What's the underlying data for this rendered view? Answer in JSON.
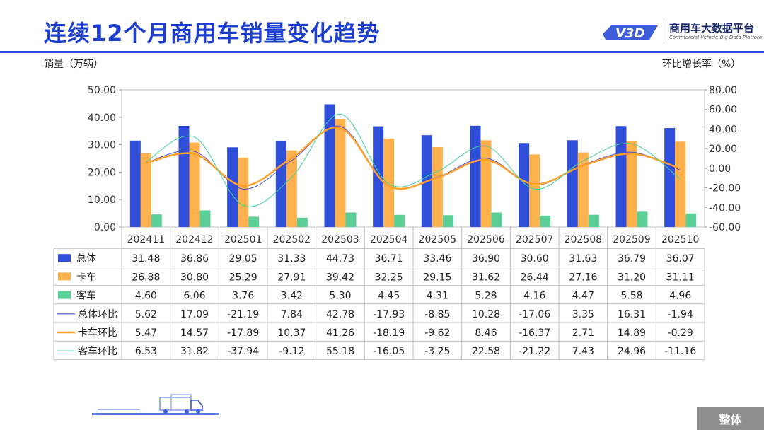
{
  "header": {
    "title": "连续12个月商用车销量变化趋势",
    "logo_cn": "商用车大数据平台",
    "logo_en": "Commercial Vehicle Big Data Platform",
    "logo_mark": "V3D"
  },
  "footer": {
    "tag": "整体"
  },
  "colors": {
    "title": "#1e3ed0",
    "total": "#2f4fd8",
    "truck": "#ffb14e",
    "bus": "#5ccf97",
    "total_mom": "#3d4fd9",
    "truck_mom": "#ff9f2a",
    "bus_mom": "#3ed09a"
  },
  "chart_data": {
    "type": "bar",
    "ylabel": "销量（万辆）",
    "y2label": "环比增长率（%）",
    "ylim": [
      0,
      50
    ],
    "y2lim": [
      -60,
      80
    ],
    "yticks": [
      "0.00",
      "10.00",
      "20.00",
      "30.00",
      "40.00",
      "50.00"
    ],
    "y2ticks": [
      "-60.00",
      "-40.00",
      "-20.00",
      "0.00",
      "20.00",
      "40.00",
      "60.00",
      "80.00"
    ],
    "grid": false,
    "categories": [
      "202411",
      "202412",
      "202501",
      "202502",
      "202503",
      "202504",
      "202505",
      "202506",
      "202507",
      "202508",
      "202509",
      "202510"
    ],
    "series": [
      {
        "name": "总体",
        "kind": "bar",
        "axis": "left",
        "color": "#2f4fd8",
        "values": [
          31.48,
          36.86,
          29.05,
          31.33,
          44.73,
          36.71,
          33.46,
          36.9,
          30.6,
          31.63,
          36.79,
          36.07
        ],
        "labels": [
          "31.48",
          "36.86",
          "29.05",
          "31.33",
          "44.73",
          "36.71",
          "33.46",
          "36.90",
          "30.60",
          "31.63",
          "36.79",
          "36.07"
        ]
      },
      {
        "name": "卡车",
        "kind": "bar",
        "axis": "left",
        "color": "#ffb14e",
        "values": [
          26.88,
          30.8,
          25.29,
          27.91,
          39.42,
          32.25,
          29.15,
          31.62,
          26.44,
          27.16,
          31.2,
          31.11
        ],
        "labels": [
          "26.88",
          "30.80",
          "25.29",
          "27.91",
          "39.42",
          "32.25",
          "29.15",
          "31.62",
          "26.44",
          "27.16",
          "31.20",
          "31.11"
        ]
      },
      {
        "name": "客车",
        "kind": "bar",
        "axis": "left",
        "color": "#5ccf97",
        "values": [
          4.6,
          6.06,
          3.76,
          3.42,
          5.3,
          4.45,
          4.31,
          5.28,
          4.16,
          4.47,
          5.58,
          4.96
        ],
        "labels": [
          "4.60",
          "6.06",
          "3.76",
          "3.42",
          "5.30",
          "4.45",
          "4.31",
          "5.28",
          "4.16",
          "4.47",
          "5.58",
          "4.96"
        ]
      },
      {
        "name": "总体环比",
        "kind": "line",
        "axis": "right",
        "color": "#3d4fd9",
        "values": [
          5.62,
          17.09,
          -21.19,
          7.84,
          42.78,
          -17.93,
          -8.85,
          10.28,
          -17.06,
          3.35,
          16.31,
          -1.94
        ],
        "labels": [
          "5.62",
          "17.09",
          "-21.19",
          "7.84",
          "42.78",
          "-17.93",
          "-8.85",
          "10.28",
          "-17.06",
          "3.35",
          "16.31",
          "-1.94"
        ]
      },
      {
        "name": "卡车环比",
        "kind": "line",
        "axis": "right",
        "color": "#ff9f2a",
        "values": [
          5.47,
          14.57,
          -17.89,
          10.37,
          41.26,
          -18.19,
          -9.62,
          8.46,
          -16.37,
          2.71,
          14.89,
          -0.29
        ],
        "labels": [
          "5.47",
          "14.57",
          "-17.89",
          "10.37",
          "41.26",
          "-18.19",
          "-9.62",
          "8.46",
          "-16.37",
          "2.71",
          "14.89",
          "-0.29"
        ]
      },
      {
        "name": "客车环比",
        "kind": "line",
        "axis": "right",
        "color": "#3ed09a",
        "values": [
          6.53,
          31.82,
          -37.94,
          -9.12,
          55.18,
          -16.05,
          -3.25,
          22.58,
          -21.22,
          7.43,
          24.96,
          -11.16
        ],
        "labels": [
          "6.53",
          "31.82",
          "-37.94",
          "-9.12",
          "55.18",
          "-16.05",
          "-3.25",
          "22.58",
          "-21.22",
          "7.43",
          "24.96",
          "-11.16"
        ]
      }
    ]
  }
}
